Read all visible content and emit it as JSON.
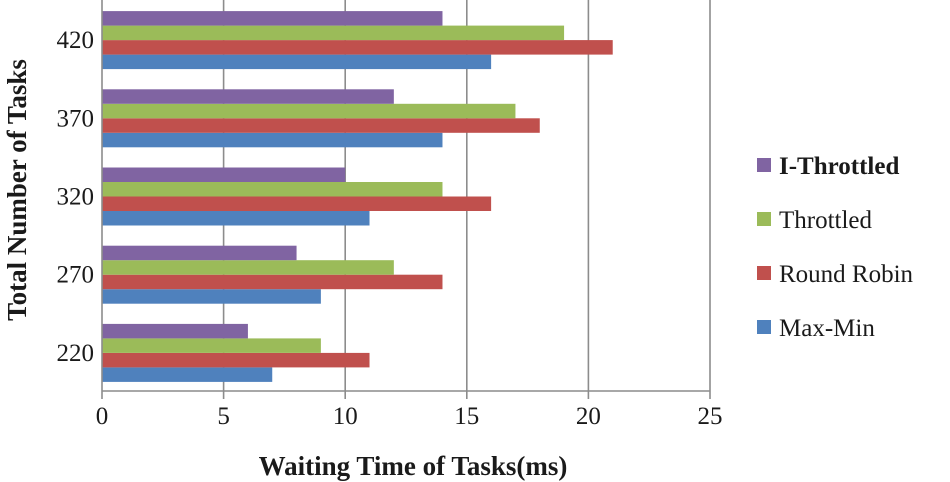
{
  "chart_data": {
    "type": "bar",
    "orientation": "horizontal",
    "title": "",
    "xlabel": "Waiting Time of Tasks(ms)",
    "ylabel": "Total Number of Tasks",
    "xlim": [
      0,
      25
    ],
    "x_ticks": [
      "0",
      "5",
      "10",
      "15",
      "20",
      "25"
    ],
    "categories": [
      "220",
      "270",
      "320",
      "370",
      "420"
    ],
    "grid": "vertical",
    "legend_position": "right",
    "series": [
      {
        "name": "Max-Min",
        "color": "#4f81bd",
        "values": [
          7,
          9,
          11,
          14,
          16
        ]
      },
      {
        "name": "Round Robin",
        "color": "#c0504d",
        "values": [
          11,
          14,
          16,
          18,
          21
        ]
      },
      {
        "name": "Throttled",
        "color": "#9bbb59",
        "values": [
          9,
          12,
          14,
          17,
          19
        ]
      },
      {
        "name": "I-Throttled",
        "color": "#8064a2",
        "values": [
          6,
          8,
          10,
          12,
          14
        ],
        "bold": true
      }
    ]
  }
}
